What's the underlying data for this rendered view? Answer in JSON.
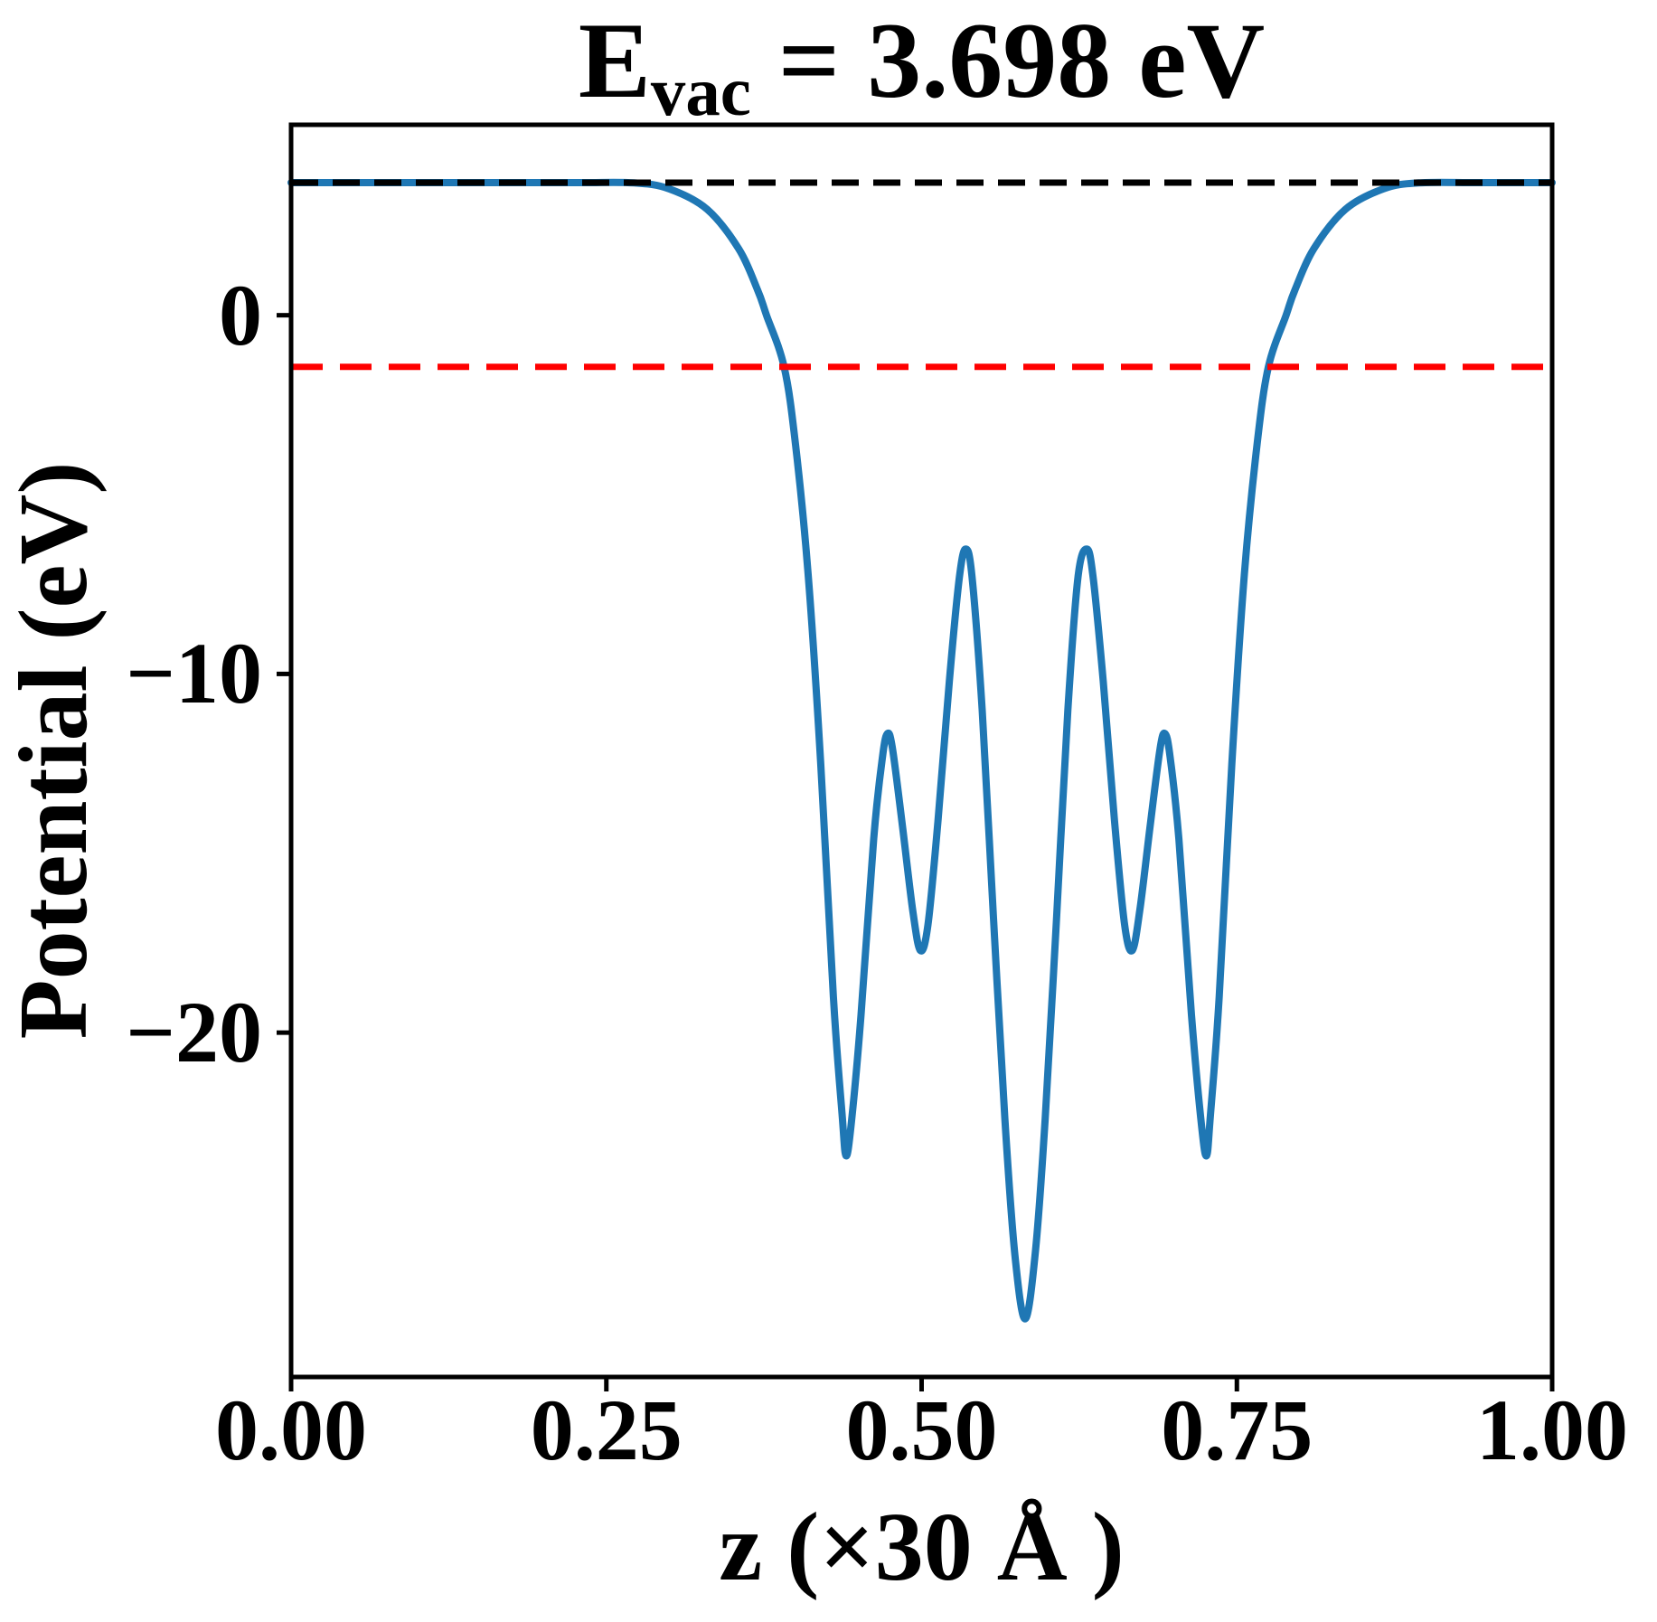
{
  "chart_data": {
    "type": "line",
    "title": {
      "prefix": "E",
      "sub": "vac",
      "rest": " = 3.698 eV"
    },
    "xlabel": "z (×30 Å )",
    "ylabel": "Potential (eV)",
    "xlim": [
      0,
      1
    ],
    "ylim": [
      -29.6,
      5.31
    ],
    "grid": false,
    "legend": "none",
    "x_ticks": {
      "values": [
        0,
        0.25,
        0.5,
        0.75,
        1.0
      ],
      "labels": [
        "0.00",
        "0.25",
        "0.50",
        "0.75",
        "1.00"
      ]
    },
    "y_ticks": {
      "values": [
        0,
        -10,
        -20
      ],
      "labels": [
        "0",
        "−10",
        "−20"
      ]
    },
    "hlines": [
      {
        "role": "vacuum-level",
        "y": 3.698,
        "color": "#000000",
        "dash": [
          30,
          16
        ],
        "width": 7
      },
      {
        "role": "fermi-level",
        "y": -1.44,
        "color": "#ff0000",
        "dash": [
          35,
          19
        ],
        "width": 7
      }
    ],
    "series": [
      {
        "name": "planar-averaged-potential",
        "color": "#1f77b4",
        "width": 8,
        "points": [
          [
            0.0,
            3.698
          ],
          [
            0.08,
            3.698
          ],
          [
            0.16,
            3.698
          ],
          [
            0.23,
            3.698
          ],
          [
            0.272,
            3.69
          ],
          [
            0.3,
            3.52
          ],
          [
            0.33,
            2.95
          ],
          [
            0.355,
            1.85
          ],
          [
            0.37,
            0.7
          ],
          [
            0.377,
            0.0
          ],
          [
            0.391,
            -1.44
          ],
          [
            0.4,
            -3.6
          ],
          [
            0.41,
            -7.2
          ],
          [
            0.42,
            -12.5
          ],
          [
            0.43,
            -19.0
          ],
          [
            0.437,
            -22.3
          ],
          [
            0.44,
            -23.43
          ],
          [
            0.444,
            -22.6
          ],
          [
            0.452,
            -19.5
          ],
          [
            0.462,
            -14.6
          ],
          [
            0.469,
            -12.3
          ],
          [
            0.473,
            -11.66
          ],
          [
            0.477,
            -12.1
          ],
          [
            0.485,
            -14.3
          ],
          [
            0.493,
            -16.6
          ],
          [
            0.499,
            -17.71
          ],
          [
            0.505,
            -17.0
          ],
          [
            0.513,
            -14.1
          ],
          [
            0.522,
            -10.2
          ],
          [
            0.53,
            -7.3
          ],
          [
            0.535,
            -6.52
          ],
          [
            0.54,
            -7.3
          ],
          [
            0.548,
            -11.0
          ],
          [
            0.557,
            -16.8
          ],
          [
            0.566,
            -22.4
          ],
          [
            0.574,
            -26.2
          ],
          [
            0.582,
            -27.98
          ],
          [
            0.59,
            -26.2
          ],
          [
            0.598,
            -22.4
          ],
          [
            0.607,
            -16.8
          ],
          [
            0.616,
            -11.0
          ],
          [
            0.624,
            -7.3
          ],
          [
            0.631,
            -6.52
          ],
          [
            0.636,
            -7.3
          ],
          [
            0.644,
            -10.2
          ],
          [
            0.653,
            -14.1
          ],
          [
            0.661,
            -17.0
          ],
          [
            0.667,
            -17.71
          ],
          [
            0.673,
            -16.6
          ],
          [
            0.681,
            -14.3
          ],
          [
            0.689,
            -12.1
          ],
          [
            0.693,
            -11.66
          ],
          [
            0.697,
            -12.3
          ],
          [
            0.704,
            -14.6
          ],
          [
            0.714,
            -19.5
          ],
          [
            0.722,
            -22.6
          ],
          [
            0.726,
            -23.43
          ],
          [
            0.729,
            -22.3
          ],
          [
            0.736,
            -19.0
          ],
          [
            0.746,
            -12.5
          ],
          [
            0.756,
            -7.2
          ],
          [
            0.766,
            -3.6
          ],
          [
            0.775,
            -1.44
          ],
          [
            0.789,
            0.0
          ],
          [
            0.796,
            0.7
          ],
          [
            0.811,
            1.85
          ],
          [
            0.836,
            2.95
          ],
          [
            0.866,
            3.52
          ],
          [
            0.894,
            3.69
          ],
          [
            0.94,
            3.698
          ],
          [
            1.0,
            3.698
          ]
        ]
      }
    ],
    "axis_style": {
      "spine_width": 5,
      "tick_length": 16,
      "tick_width": 5,
      "tick_color": "#000000"
    }
  }
}
